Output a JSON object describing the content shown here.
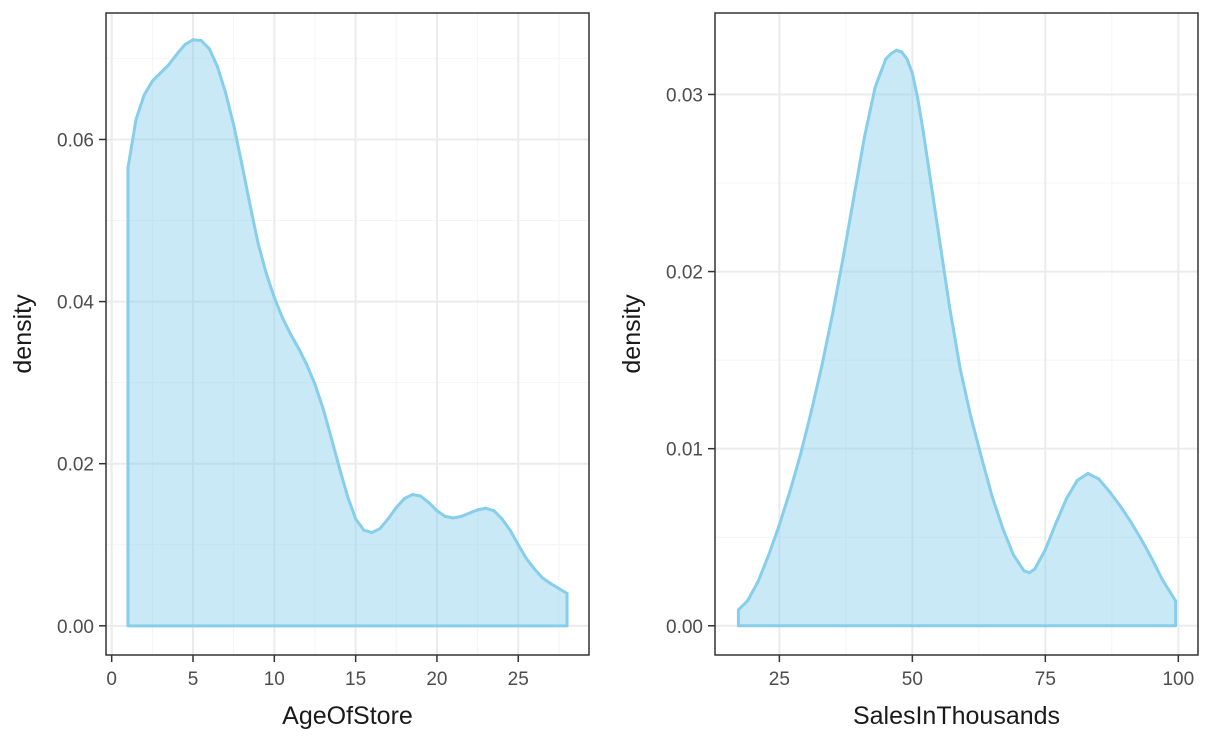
{
  "style": {
    "fill_color": "#87CEEB",
    "fill_opacity": 0.45,
    "line_color": "#87CEEB",
    "grid_major_color": "#ebebeb",
    "grid_minor_color": "#f4f4f4",
    "panel_border_color": "#333333",
    "text_color": "#4d4d4d"
  },
  "chart_data": [
    {
      "type": "area",
      "subtype": "density",
      "title": "",
      "xlabel": "AgeOfStore",
      "ylabel": "density",
      "xlim": [
        -0.35,
        29.35
      ],
      "ylim": [
        -0.0036,
        0.0756
      ],
      "xticks": [
        0,
        5,
        10,
        15,
        20,
        25
      ],
      "xtick_labels": [
        "0",
        "5",
        "10",
        "15",
        "20",
        "25"
      ],
      "yticks": [
        0.0,
        0.02,
        0.04,
        0.06
      ],
      "ytick_labels": [
        "0.00",
        "0.02",
        "0.04",
        "0.06"
      ],
      "grid": true,
      "legend": "none",
      "x": [
        1,
        1.5,
        2,
        2.5,
        3,
        3.5,
        4,
        4.5,
        5,
        5.5,
        6,
        6.5,
        7,
        7.5,
        8,
        8.5,
        9,
        9.5,
        10,
        10.5,
        11,
        11.5,
        12,
        12.5,
        13,
        13.5,
        14,
        14.5,
        15,
        15.5,
        16,
        16.5,
        17,
        17.5,
        18,
        18.5,
        19,
        19.5,
        20,
        20.5,
        21,
        21.5,
        22,
        22.5,
        23,
        23.5,
        24,
        24.5,
        25,
        25.5,
        26,
        26.5,
        27,
        27.5,
        28
      ],
      "values": [
        0.0565,
        0.0625,
        0.0655,
        0.0672,
        0.0682,
        0.0692,
        0.0705,
        0.0717,
        0.0723,
        0.0722,
        0.0712,
        0.069,
        0.0658,
        0.0618,
        0.057,
        0.052,
        0.0472,
        0.0435,
        0.0405,
        0.038,
        0.036,
        0.0342,
        0.0322,
        0.0298,
        0.0268,
        0.0232,
        0.0195,
        0.016,
        0.0132,
        0.0118,
        0.0115,
        0.012,
        0.0132,
        0.0146,
        0.0157,
        0.0162,
        0.016,
        0.0152,
        0.0142,
        0.0135,
        0.0133,
        0.0135,
        0.0139,
        0.0143,
        0.0145,
        0.0142,
        0.0132,
        0.0118,
        0.01,
        0.0083,
        0.007,
        0.0059,
        0.0052,
        0.0046,
        0.004
      ]
    },
    {
      "type": "area",
      "subtype": "density",
      "title": "",
      "xlabel": "SalesInThousands",
      "ylabel": "density",
      "xlim": [
        12.9,
        103.7
      ],
      "ylim": [
        -0.00165,
        0.0346
      ],
      "xticks": [
        25,
        50,
        75,
        100
      ],
      "xtick_labels": [
        "25",
        "50",
        "75",
        "100"
      ],
      "yticks": [
        0.0,
        0.01,
        0.02,
        0.03
      ],
      "ytick_labels": [
        "0.00",
        "0.01",
        "0.02",
        "0.03"
      ],
      "grid": true,
      "legend": "none",
      "x": [
        17.3,
        19,
        21,
        23,
        25,
        27,
        29,
        31,
        33,
        35,
        37,
        39,
        41,
        43,
        45,
        46,
        47,
        48,
        49,
        50,
        51,
        52,
        53,
        55,
        57,
        59,
        61,
        63,
        65,
        67,
        69,
        71,
        72,
        73,
        75,
        77,
        79,
        81,
        83,
        85,
        87,
        89,
        91,
        93,
        95,
        97,
        99.5
      ],
      "values": [
        0.0009,
        0.0014,
        0.0025,
        0.004,
        0.0057,
        0.0076,
        0.0097,
        0.0121,
        0.0147,
        0.0176,
        0.0208,
        0.0242,
        0.0276,
        0.0304,
        0.032,
        0.0323,
        0.0325,
        0.0324,
        0.032,
        0.0312,
        0.0298,
        0.028,
        0.026,
        0.022,
        0.018,
        0.0145,
        0.0118,
        0.0095,
        0.0073,
        0.0055,
        0.004,
        0.0031,
        0.003,
        0.0032,
        0.0043,
        0.0058,
        0.0072,
        0.0082,
        0.0086,
        0.0083,
        0.0076,
        0.0068,
        0.0059,
        0.0049,
        0.0038,
        0.0026,
        0.0014
      ]
    }
  ]
}
